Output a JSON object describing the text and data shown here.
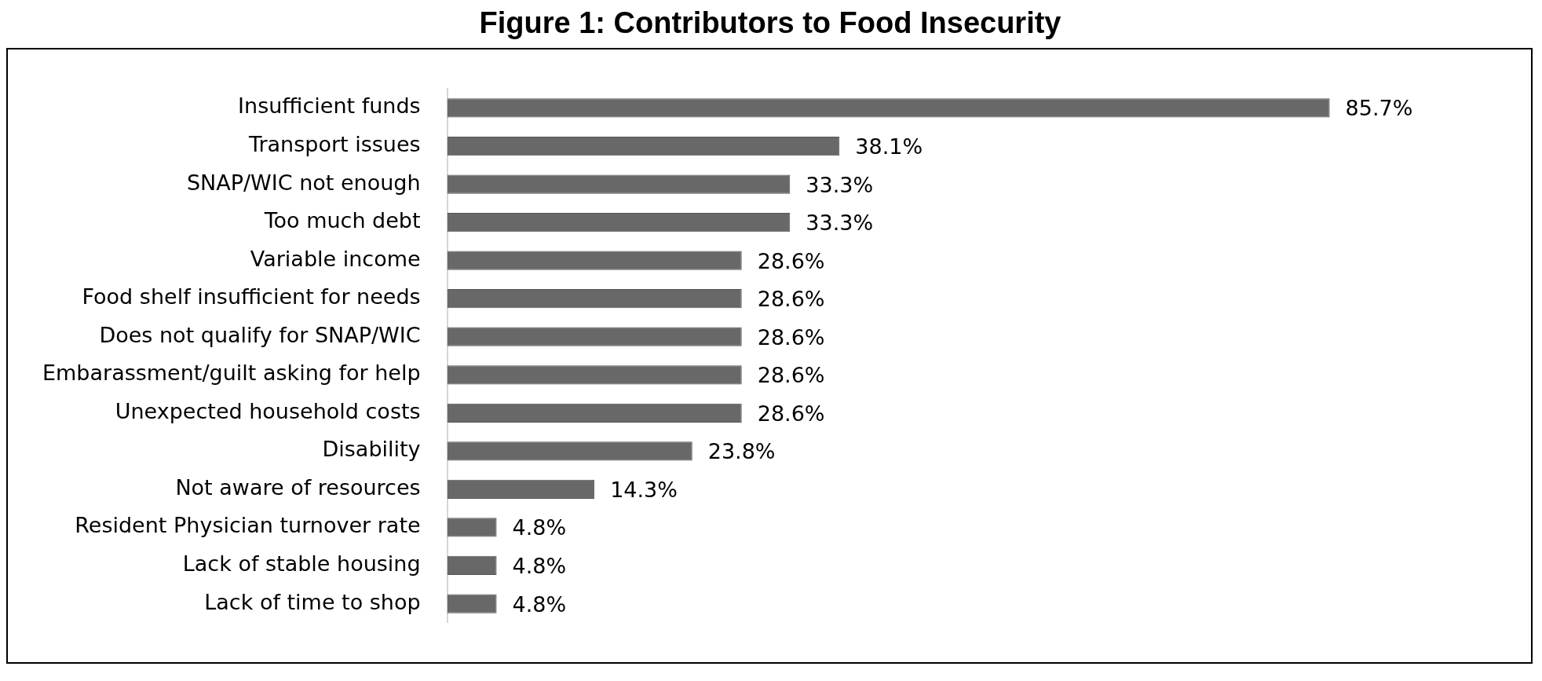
{
  "chart_data": {
    "type": "bar",
    "orientation": "horizontal",
    "title": "Figure 1: Contributors to Food Insecurity",
    "categories": [
      "Insufficient funds",
      "Transport issues",
      "SNAP/WIC not enough",
      "Too much debt",
      "Variable income",
      "Food shelf insufficient for needs",
      "Does not qualify for SNAP/WIC",
      "Embarassment/guilt asking for help",
      "Unexpected household costs",
      "Disability",
      "Not aware of resources",
      "Resident Physician turnover rate",
      "Lack of stable housing",
      "Lack of time to shop"
    ],
    "values": [
      85.7,
      38.1,
      33.3,
      33.3,
      28.6,
      28.6,
      28.6,
      28.6,
      28.6,
      23.8,
      14.3,
      4.8,
      4.8,
      4.8
    ],
    "value_labels": [
      "85.7%",
      "38.1%",
      "33.3%",
      "33.3%",
      "28.6%",
      "28.6%",
      "28.6%",
      "28.6%",
      "28.6%",
      "23.8%",
      "14.3%",
      "4.8%",
      "4.8%",
      "4.8%"
    ],
    "color": "#686868",
    "grid": false,
    "legend": false
  }
}
